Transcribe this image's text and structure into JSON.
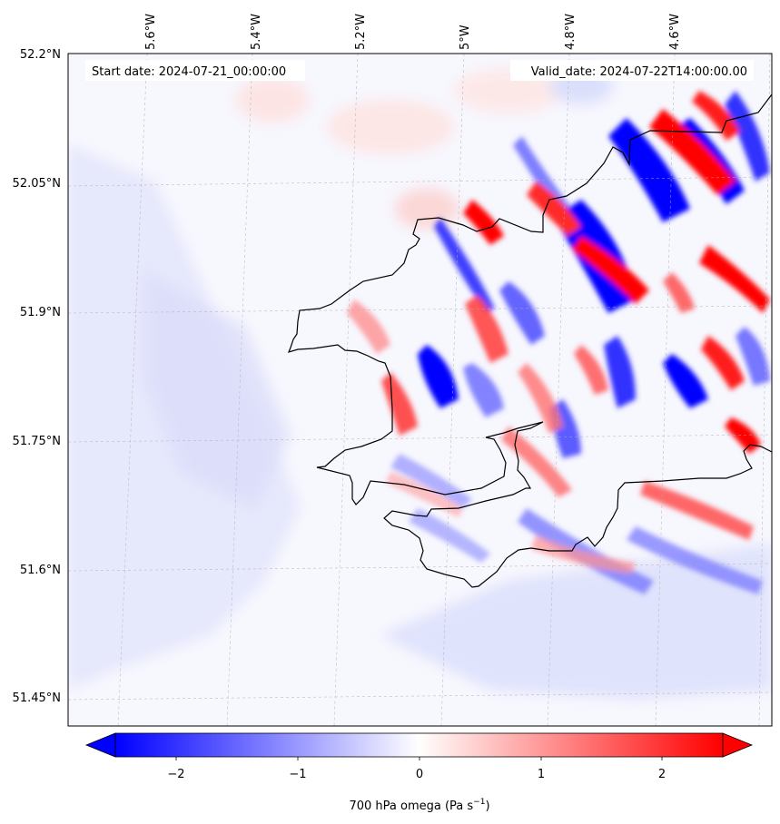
{
  "map": {
    "start_date": "Start date: 2024-07-21_00:00:00",
    "valid_date": "Valid_date: 2024-07-22T14:00:00.00",
    "lon_labels": [
      "5.6°W",
      "5.4°W",
      "5.2°W",
      "5°W",
      "4.8°W",
      "4.6°W"
    ],
    "lat_labels": [
      "52.2°N",
      "52.05°N",
      "51.9°N",
      "51.75°N",
      "51.6°N",
      "51.45°N"
    ]
  },
  "colorbar": {
    "ticks": [
      "−2",
      "−1",
      "0",
      "1",
      "2"
    ],
    "label_main": "700 hPa omega (Pa s",
    "label_sup": "−1",
    "label_end": ")",
    "colors": {
      "negative": "#0000ff",
      "zero": "#ffffff",
      "positive": "#ff0000"
    }
  }
}
